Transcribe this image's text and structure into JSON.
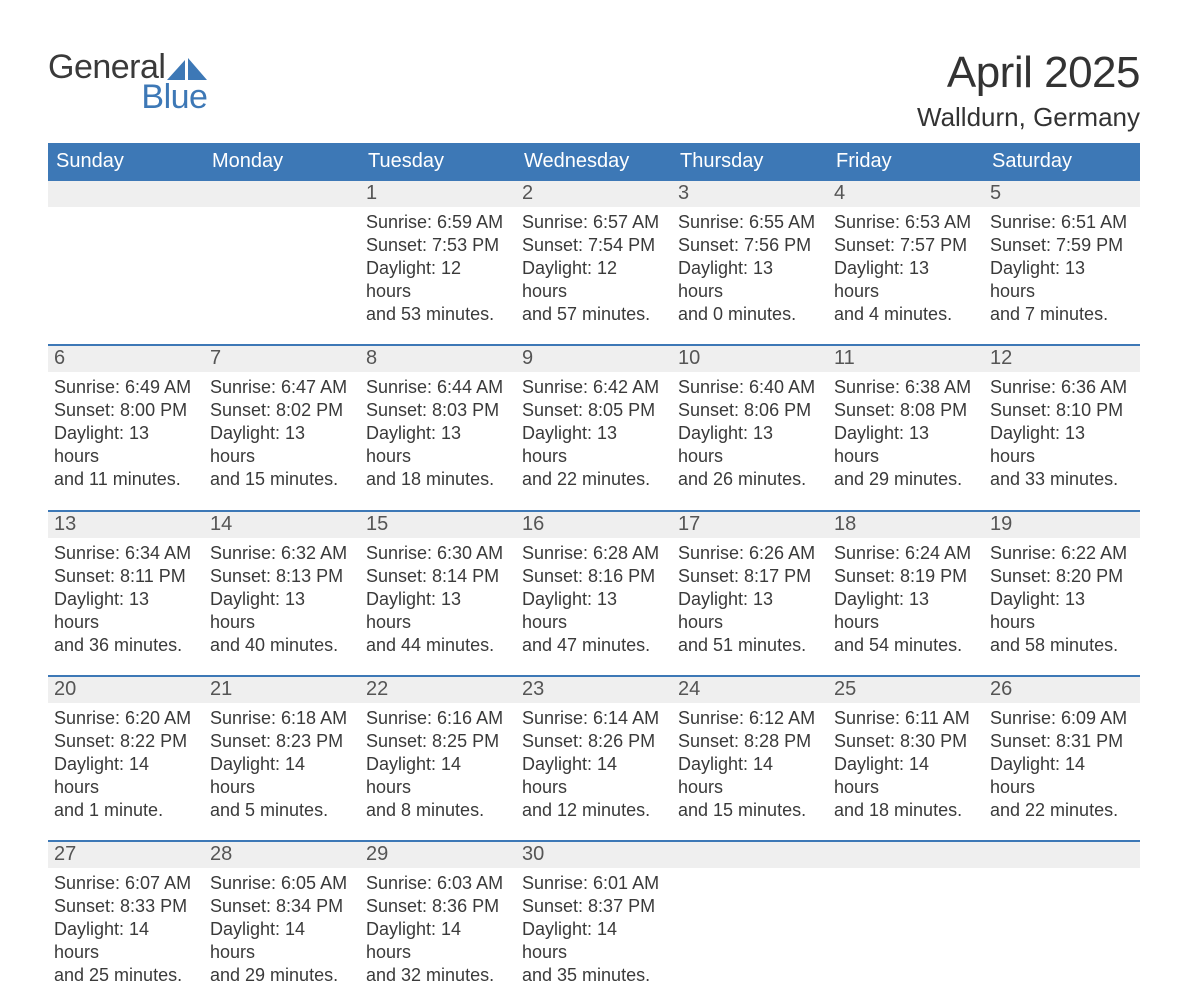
{
  "logo": {
    "text1": "General",
    "text2": "Blue",
    "text1_color": "#3a3a3a",
    "text2_color": "#3d78b6",
    "shape_color": "#3d78b6",
    "font_size": 34
  },
  "heading": {
    "title": "April 2025",
    "subtitle": "Walldurn, Germany",
    "title_fontsize": 44,
    "subtitle_fontsize": 26,
    "color": "#333333"
  },
  "styling": {
    "header_bg": "#3d78b6",
    "header_fg": "#ffffff",
    "header_fontsize": 20,
    "week_divider_color": "#3d78b6",
    "daynum_bg": "#efefef",
    "daynum_fg": "#555555",
    "daynum_fontsize": 20,
    "body_color": "#3a3a3a",
    "body_fontsize": 18,
    "page_bg": "#ffffff"
  },
  "columns": [
    "Sunday",
    "Monday",
    "Tuesday",
    "Wednesday",
    "Thursday",
    "Friday",
    "Saturday"
  ],
  "weeks": [
    [
      {
        "num": "",
        "lines": []
      },
      {
        "num": "",
        "lines": []
      },
      {
        "num": "1",
        "lines": [
          "Sunrise: 6:59 AM",
          "Sunset: 7:53 PM",
          "Daylight: 12 hours",
          "and 53 minutes."
        ]
      },
      {
        "num": "2",
        "lines": [
          "Sunrise: 6:57 AM",
          "Sunset: 7:54 PM",
          "Daylight: 12 hours",
          "and 57 minutes."
        ]
      },
      {
        "num": "3",
        "lines": [
          "Sunrise: 6:55 AM",
          "Sunset: 7:56 PM",
          "Daylight: 13 hours",
          "and 0 minutes."
        ]
      },
      {
        "num": "4",
        "lines": [
          "Sunrise: 6:53 AM",
          "Sunset: 7:57 PM",
          "Daylight: 13 hours",
          "and 4 minutes."
        ]
      },
      {
        "num": "5",
        "lines": [
          "Sunrise: 6:51 AM",
          "Sunset: 7:59 PM",
          "Daylight: 13 hours",
          "and 7 minutes."
        ]
      }
    ],
    [
      {
        "num": "6",
        "lines": [
          "Sunrise: 6:49 AM",
          "Sunset: 8:00 PM",
          "Daylight: 13 hours",
          "and 11 minutes."
        ]
      },
      {
        "num": "7",
        "lines": [
          "Sunrise: 6:47 AM",
          "Sunset: 8:02 PM",
          "Daylight: 13 hours",
          "and 15 minutes."
        ]
      },
      {
        "num": "8",
        "lines": [
          "Sunrise: 6:44 AM",
          "Sunset: 8:03 PM",
          "Daylight: 13 hours",
          "and 18 minutes."
        ]
      },
      {
        "num": "9",
        "lines": [
          "Sunrise: 6:42 AM",
          "Sunset: 8:05 PM",
          "Daylight: 13 hours",
          "and 22 minutes."
        ]
      },
      {
        "num": "10",
        "lines": [
          "Sunrise: 6:40 AM",
          "Sunset: 8:06 PM",
          "Daylight: 13 hours",
          "and 26 minutes."
        ]
      },
      {
        "num": "11",
        "lines": [
          "Sunrise: 6:38 AM",
          "Sunset: 8:08 PM",
          "Daylight: 13 hours",
          "and 29 minutes."
        ]
      },
      {
        "num": "12",
        "lines": [
          "Sunrise: 6:36 AM",
          "Sunset: 8:10 PM",
          "Daylight: 13 hours",
          "and 33 minutes."
        ]
      }
    ],
    [
      {
        "num": "13",
        "lines": [
          "Sunrise: 6:34 AM",
          "Sunset: 8:11 PM",
          "Daylight: 13 hours",
          "and 36 minutes."
        ]
      },
      {
        "num": "14",
        "lines": [
          "Sunrise: 6:32 AM",
          "Sunset: 8:13 PM",
          "Daylight: 13 hours",
          "and 40 minutes."
        ]
      },
      {
        "num": "15",
        "lines": [
          "Sunrise: 6:30 AM",
          "Sunset: 8:14 PM",
          "Daylight: 13 hours",
          "and 44 minutes."
        ]
      },
      {
        "num": "16",
        "lines": [
          "Sunrise: 6:28 AM",
          "Sunset: 8:16 PM",
          "Daylight: 13 hours",
          "and 47 minutes."
        ]
      },
      {
        "num": "17",
        "lines": [
          "Sunrise: 6:26 AM",
          "Sunset: 8:17 PM",
          "Daylight: 13 hours",
          "and 51 minutes."
        ]
      },
      {
        "num": "18",
        "lines": [
          "Sunrise: 6:24 AM",
          "Sunset: 8:19 PM",
          "Daylight: 13 hours",
          "and 54 minutes."
        ]
      },
      {
        "num": "19",
        "lines": [
          "Sunrise: 6:22 AM",
          "Sunset: 8:20 PM",
          "Daylight: 13 hours",
          "and 58 minutes."
        ]
      }
    ],
    [
      {
        "num": "20",
        "lines": [
          "Sunrise: 6:20 AM",
          "Sunset: 8:22 PM",
          "Daylight: 14 hours",
          "and 1 minute."
        ]
      },
      {
        "num": "21",
        "lines": [
          "Sunrise: 6:18 AM",
          "Sunset: 8:23 PM",
          "Daylight: 14 hours",
          "and 5 minutes."
        ]
      },
      {
        "num": "22",
        "lines": [
          "Sunrise: 6:16 AM",
          "Sunset: 8:25 PM",
          "Daylight: 14 hours",
          "and 8 minutes."
        ]
      },
      {
        "num": "23",
        "lines": [
          "Sunrise: 6:14 AM",
          "Sunset: 8:26 PM",
          "Daylight: 14 hours",
          "and 12 minutes."
        ]
      },
      {
        "num": "24",
        "lines": [
          "Sunrise: 6:12 AM",
          "Sunset: 8:28 PM",
          "Daylight: 14 hours",
          "and 15 minutes."
        ]
      },
      {
        "num": "25",
        "lines": [
          "Sunrise: 6:11 AM",
          "Sunset: 8:30 PM",
          "Daylight: 14 hours",
          "and 18 minutes."
        ]
      },
      {
        "num": "26",
        "lines": [
          "Sunrise: 6:09 AM",
          "Sunset: 8:31 PM",
          "Daylight: 14 hours",
          "and 22 minutes."
        ]
      }
    ],
    [
      {
        "num": "27",
        "lines": [
          "Sunrise: 6:07 AM",
          "Sunset: 8:33 PM",
          "Daylight: 14 hours",
          "and 25 minutes."
        ]
      },
      {
        "num": "28",
        "lines": [
          "Sunrise: 6:05 AM",
          "Sunset: 8:34 PM",
          "Daylight: 14 hours",
          "and 29 minutes."
        ]
      },
      {
        "num": "29",
        "lines": [
          "Sunrise: 6:03 AM",
          "Sunset: 8:36 PM",
          "Daylight: 14 hours",
          "and 32 minutes."
        ]
      },
      {
        "num": "30",
        "lines": [
          "Sunrise: 6:01 AM",
          "Sunset: 8:37 PM",
          "Daylight: 14 hours",
          "and 35 minutes."
        ]
      },
      {
        "num": "",
        "lines": []
      },
      {
        "num": "",
        "lines": []
      },
      {
        "num": "",
        "lines": []
      }
    ]
  ]
}
